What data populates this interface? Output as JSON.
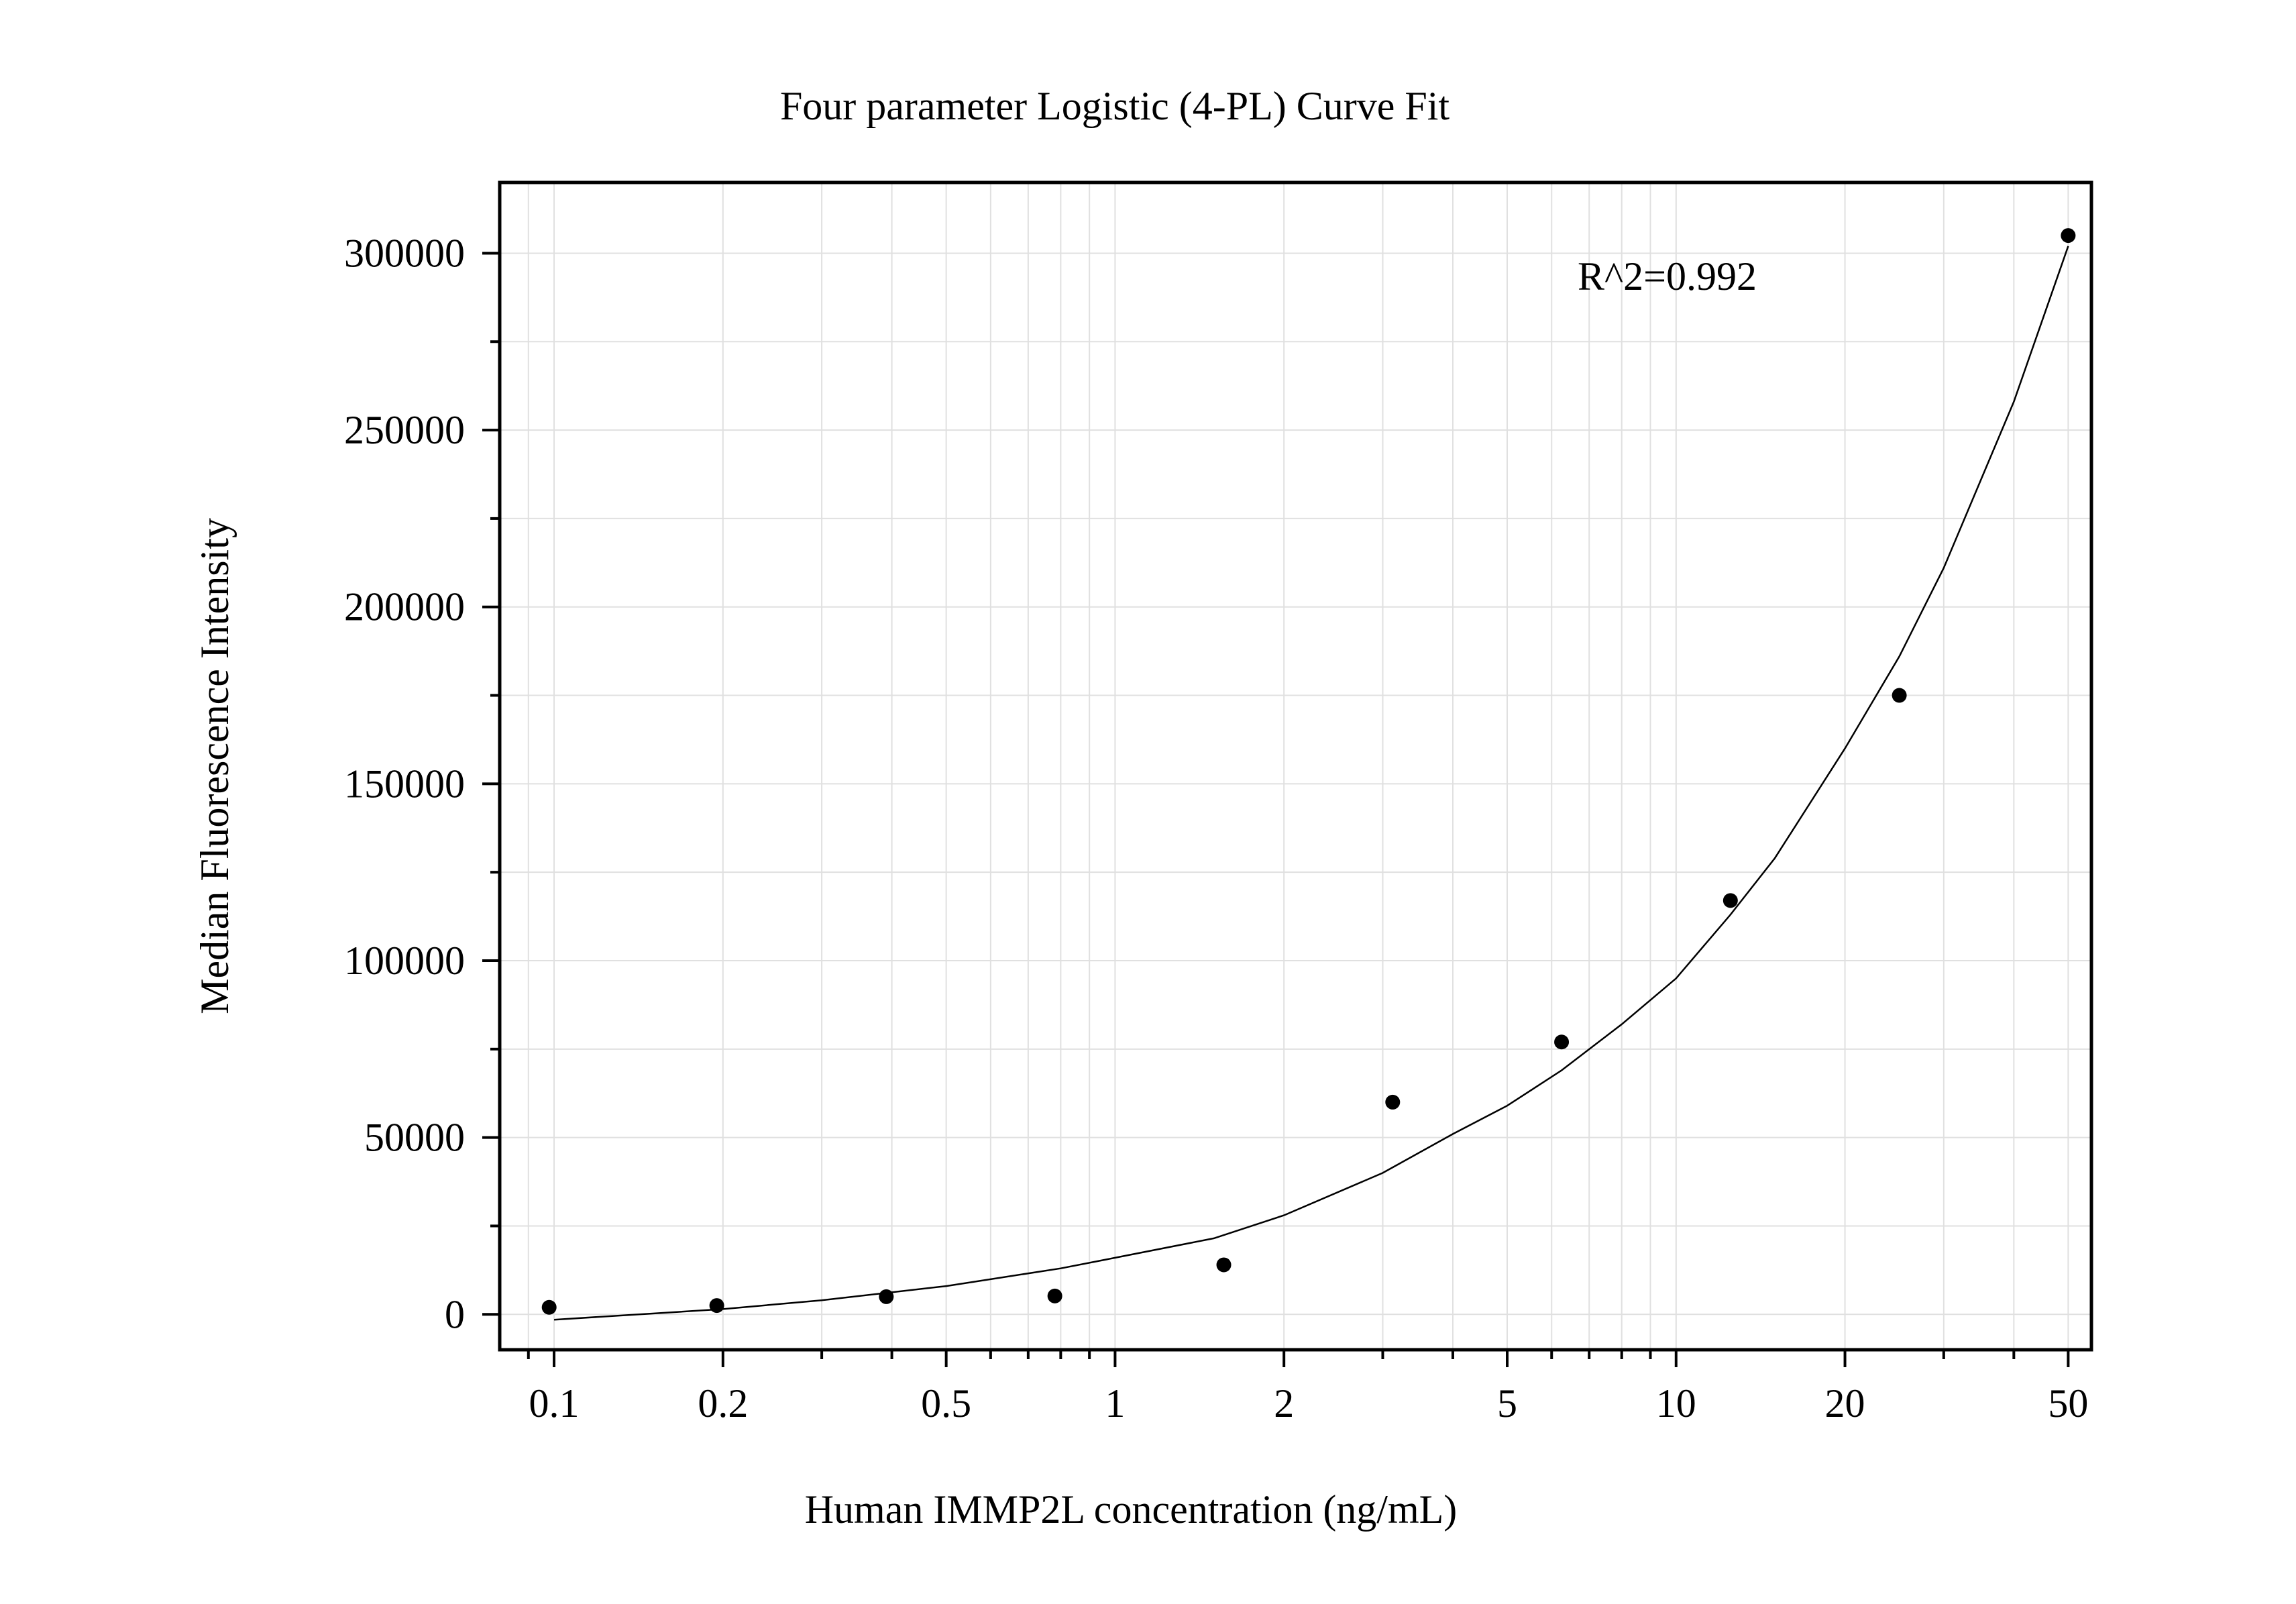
{
  "chart_data": {
    "type": "scatter",
    "title": "Four parameter Logistic (4-PL) Curve Fit",
    "xlabel": "Human IMMP2L concentration (ng/mL)",
    "ylabel": "Median Fluorescence Intensity",
    "x_scale": "log",
    "xlim": [
      0.08,
      55
    ],
    "ylim": [
      -10000,
      320000
    ],
    "x_ticks": [
      0.1,
      0.2,
      0.5,
      1,
      2,
      5,
      10,
      20,
      50
    ],
    "x_tick_labels": [
      "0.1",
      "0.2",
      "0.5",
      "1",
      "2",
      "5",
      "10",
      "20",
      "50"
    ],
    "y_ticks": [
      0,
      50000,
      100000,
      150000,
      200000,
      250000,
      300000
    ],
    "y_tick_labels": [
      "0",
      "50000",
      "100000",
      "150000",
      "200000",
      "250000",
      "300000"
    ],
    "grid": true,
    "annotation": "R^2=0.992",
    "points": {
      "x": [
        0.098,
        0.195,
        0.391,
        0.781,
        1.5625,
        3.125,
        6.25,
        12.5,
        25,
        50
      ],
      "y": [
        2000,
        2500,
        5000,
        5200,
        14000,
        60000,
        77000,
        117000,
        175000,
        305000
      ]
    },
    "fit_curve": {
      "x": [
        0.1,
        0.2,
        0.3,
        0.5,
        0.8,
        1,
        1.5,
        2,
        3,
        4,
        5,
        6.25,
        8,
        10,
        12.5,
        15,
        20,
        25,
        30,
        40,
        50
      ],
      "y": [
        -1500,
        1500,
        4000,
        8000,
        13000,
        16000,
        21500,
        28000,
        40000,
        51000,
        59000,
        69000,
        82000,
        95000,
        113000,
        129000,
        160000,
        186000,
        211000,
        258000,
        302000
      ]
    },
    "colors": {
      "points": "#000000",
      "curve": "#000000",
      "grid": "#e0e0e0",
      "axes": "#000000"
    }
  }
}
